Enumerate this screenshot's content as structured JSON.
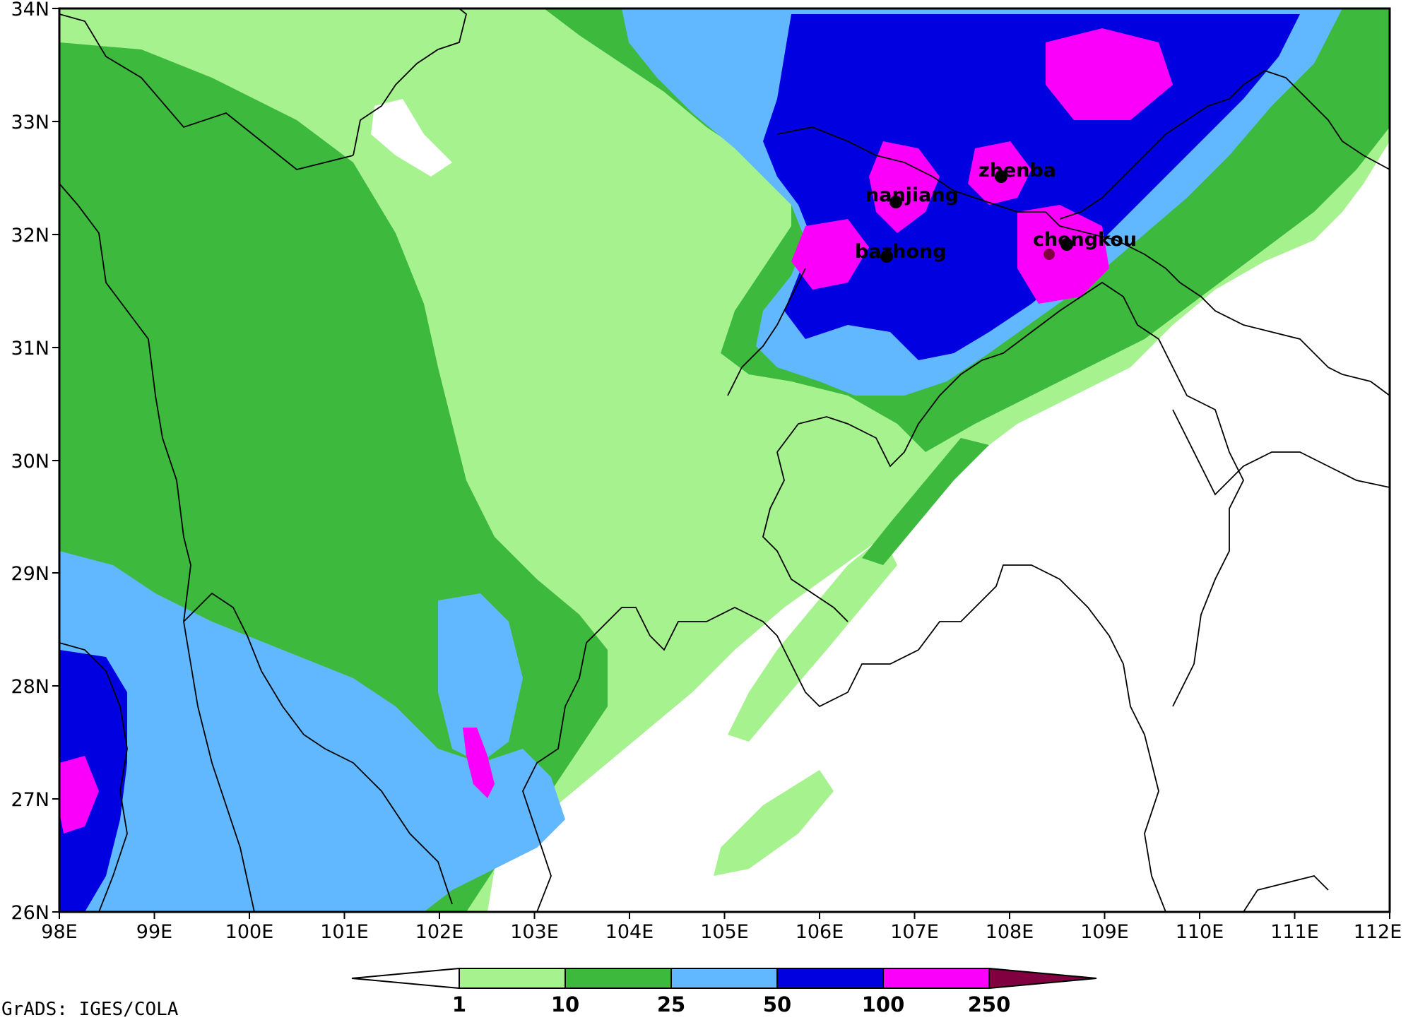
{
  "map": {
    "lat_ticks": [
      "34N",
      "33N",
      "32N",
      "31N",
      "30N",
      "29N",
      "28N",
      "27N",
      "26N"
    ],
    "lon_ticks": [
      "98E",
      "99E",
      "100E",
      "101E",
      "102E",
      "103E",
      "104E",
      "105E",
      "106E",
      "107E",
      "108E",
      "109E",
      "110E",
      "111E",
      "112E"
    ],
    "extent": {
      "lon": [
        98,
        112
      ],
      "lat": [
        26,
        34
      ]
    },
    "cities": [
      {
        "name": "zhenba",
        "lon": 107.9,
        "lat": 32.5
      },
      {
        "name": "nanjiang",
        "lon": 106.8,
        "lat": 32.3
      },
      {
        "name": "bazhong",
        "lon": 106.7,
        "lat": 31.8
      },
      {
        "name": "chengkou",
        "lon": 108.6,
        "lat": 31.9
      }
    ],
    "city_labels": {
      "zhenba": "zhenba",
      "nanjiang": "nanjiang",
      "bazhong": "bazhong",
      "chengkou": "chengkou"
    }
  },
  "colorbar": {
    "levels": [
      "1",
      "10",
      "25",
      "50",
      "100",
      "250"
    ],
    "colors": [
      "#ffffff",
      "#a6f28f",
      "#3dba3d",
      "#61b8ff",
      "#0000e1",
      "#fa00fa",
      "#800040"
    ]
  },
  "credit": "GrADS: IGES/COLA"
}
